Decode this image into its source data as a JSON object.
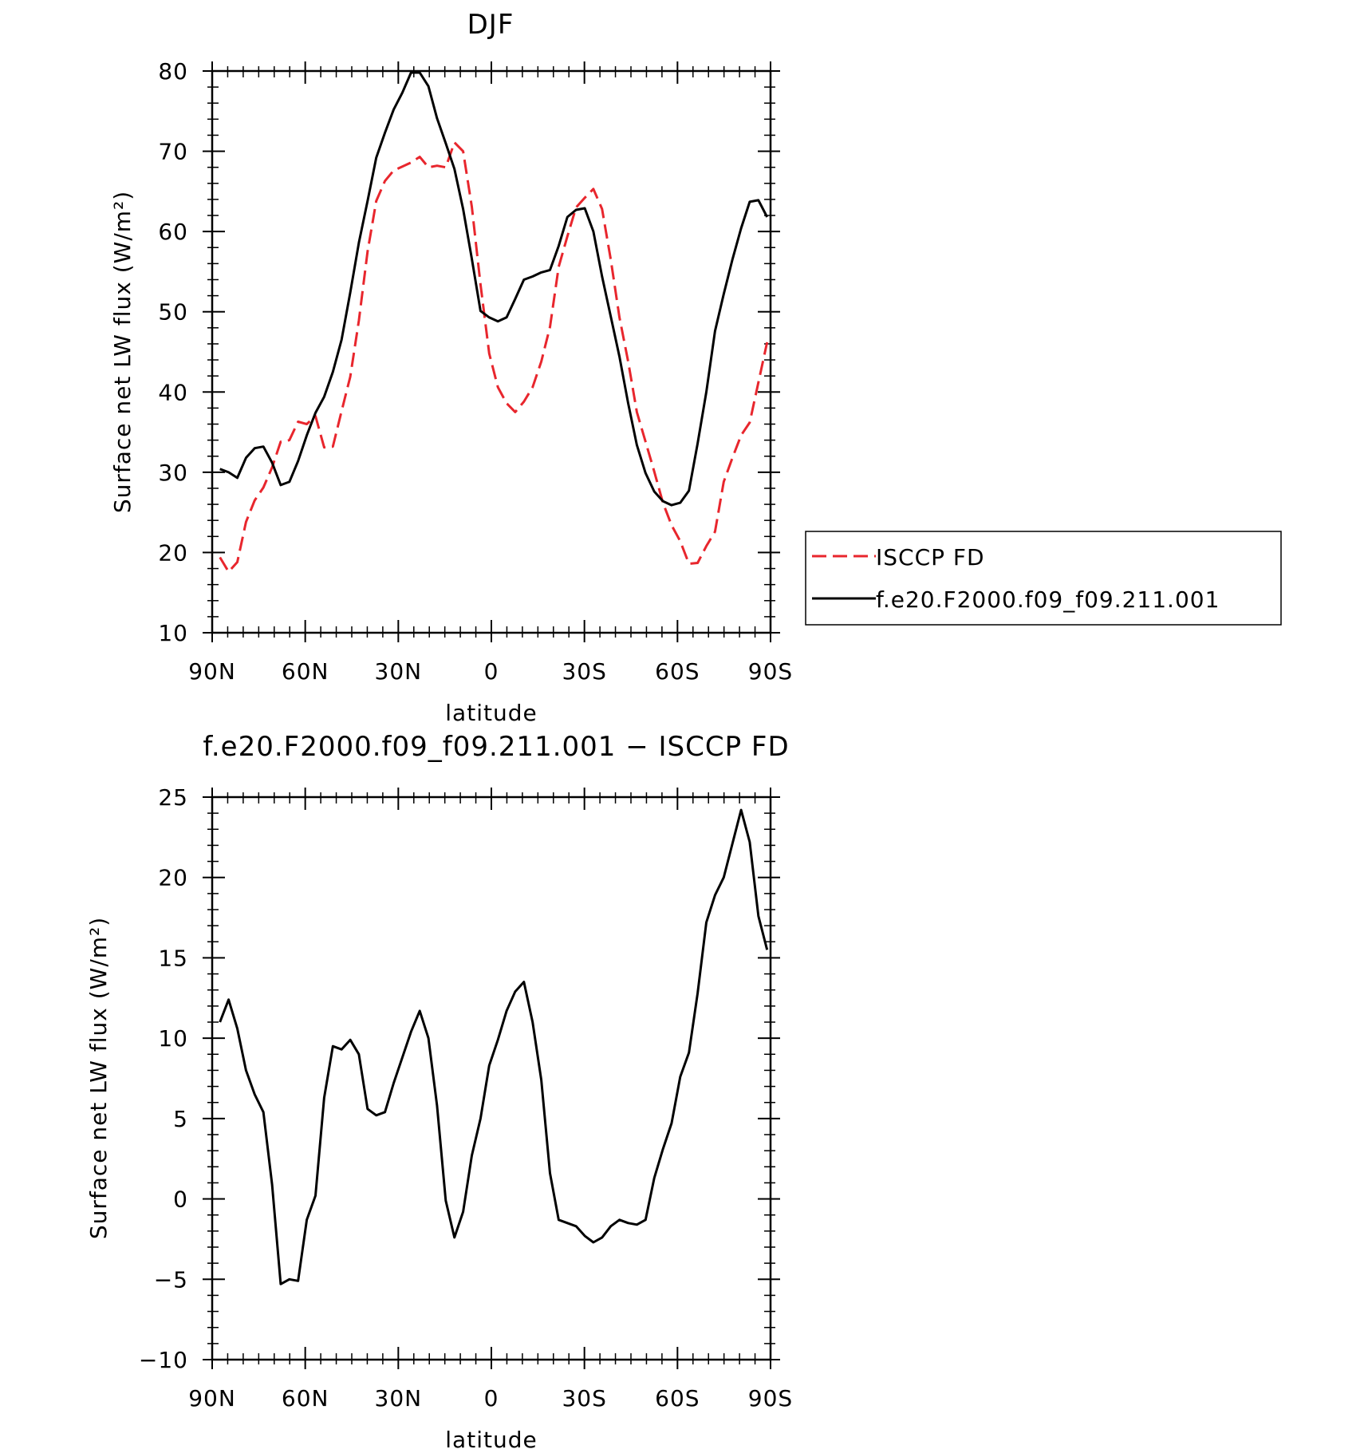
{
  "chart_data": [
    {
      "type": "line",
      "title": "DJF",
      "xlabel": "latitude",
      "ylabel": "Surface net LW flux (W/m²)",
      "xlim": [
        90,
        -90
      ],
      "ylim": [
        10,
        80
      ],
      "yticks": [
        10,
        20,
        30,
        40,
        50,
        60,
        70,
        80
      ],
      "xticks": [
        90,
        60,
        30,
        0,
        -30,
        -60,
        -90
      ],
      "xtick_labels": [
        "90N",
        "60N",
        "30N",
        "0",
        "30S",
        "60S",
        "90S"
      ],
      "legend_position": "right",
      "grid": false,
      "x": [
        87.5,
        84.7,
        81.9,
        79.1,
        76.3,
        73.5,
        70.7,
        67.9,
        65.1,
        62.3,
        59.5,
        56.7,
        53.9,
        51.1,
        48.3,
        45.5,
        42.7,
        39.9,
        37.1,
        34.3,
        31.5,
        28.7,
        25.9,
        23.1,
        20.3,
        17.5,
        14.7,
        11.9,
        9.1,
        6.3,
        3.5,
        0.7,
        -2.1,
        -4.9,
        -7.7,
        -10.5,
        -13.3,
        -16.1,
        -18.9,
        -21.7,
        -24.5,
        -27.3,
        -30.1,
        -32.9,
        -35.7,
        -38.5,
        -41.3,
        -44.1,
        -46.9,
        -49.7,
        -52.5,
        -55.3,
        -58.1,
        -60.9,
        -63.7,
        -66.5,
        -69.3,
        -72.1,
        -74.9,
        -77.7,
        -80.5,
        -83.3,
        -86.1,
        -88.9
      ],
      "series": [
        {
          "name": "ISCCP FD",
          "color": "#e8262d",
          "dash": "dashed",
          "values": [
            19.4,
            17.6,
            18.8,
            23.8,
            26.5,
            28.1,
            30.6,
            33.8,
            34.0,
            36.3,
            36.0,
            37.0,
            33.1,
            33.2,
            37.6,
            41.9,
            48.9,
            57.5,
            63.8,
            66.3,
            67.6,
            68.1,
            68.6,
            69.3,
            68.0,
            68.2,
            68.0,
            71.1,
            70.0,
            63.1,
            53.4,
            44.8,
            40.6,
            38.6,
            37.5,
            38.8,
            40.6,
            43.8,
            48.1,
            55.6,
            59.4,
            63.0,
            64.2,
            65.3,
            62.8,
            56.5,
            49.3,
            43.8,
            37.5,
            33.8,
            30.1,
            26.2,
            23.4,
            21.4,
            18.6,
            18.7,
            20.8,
            22.6,
            28.8,
            31.8,
            34.6,
            36.2,
            41.2,
            46.2
          ]
        },
        {
          "name": "f.e20.F2000.f09_f09.211.001",
          "color": "#000000",
          "dash": "solid",
          "values": [
            30.4,
            30.0,
            29.3,
            31.8,
            33.0,
            33.2,
            31.2,
            28.4,
            28.8,
            31.4,
            34.6,
            37.4,
            39.4,
            42.5,
            46.5,
            52.4,
            58.6,
            63.8,
            69.2,
            72.3,
            75.2,
            77.3,
            79.8,
            79.8,
            78.1,
            74.1,
            71.0,
            67.8,
            62.8,
            56.6,
            50.1,
            49.3,
            48.8,
            49.3,
            51.6,
            54.0,
            54.4,
            54.9,
            55.2,
            58.2,
            61.8,
            62.7,
            62.9,
            60.0,
            54.4,
            49.4,
            44.4,
            38.6,
            33.4,
            29.9,
            27.6,
            26.4,
            25.9,
            26.2,
            27.7,
            33.6,
            40.0,
            47.6,
            52.2,
            56.5,
            60.4,
            63.7,
            63.9,
            61.8
          ]
        }
      ]
    },
    {
      "type": "line",
      "title": "f.e20.F2000.f09_f09.211.001 − ISCCP FD",
      "xlabel": "latitude",
      "ylabel": "Surface net LW flux (W/m²)",
      "xlim": [
        90,
        -90
      ],
      "ylim": [
        -10,
        25
      ],
      "yticks": [
        -10,
        -5,
        0,
        5,
        10,
        15,
        20,
        25
      ],
      "ytick_labels": [
        "−10",
        "−5",
        "0",
        "5",
        "10",
        "15",
        "20",
        "25"
      ],
      "xticks": [
        90,
        60,
        30,
        0,
        -30,
        -60,
        -90
      ],
      "xtick_labels": [
        "90N",
        "60N",
        "30N",
        "0",
        "30S",
        "60S",
        "90S"
      ],
      "grid": false,
      "x": [
        87.5,
        84.7,
        81.9,
        79.1,
        76.3,
        73.5,
        70.7,
        67.9,
        65.1,
        62.3,
        59.5,
        56.7,
        53.9,
        51.1,
        48.3,
        45.5,
        42.7,
        39.9,
        37.1,
        34.3,
        31.5,
        28.7,
        25.9,
        23.1,
        20.3,
        17.5,
        14.7,
        11.9,
        9.1,
        6.3,
        3.5,
        0.7,
        -2.1,
        -4.9,
        -7.7,
        -10.5,
        -13.3,
        -16.1,
        -18.9,
        -21.7,
        -24.5,
        -27.3,
        -30.1,
        -32.9,
        -35.7,
        -38.5,
        -41.3,
        -44.1,
        -46.9,
        -49.7,
        -52.5,
        -55.3,
        -58.1,
        -60.9,
        -63.7,
        -66.5,
        -69.3,
        -72.1,
        -74.9,
        -77.7,
        -80.5,
        -83.3,
        -86.1,
        -88.9
      ],
      "series": [
        {
          "color": "#000000",
          "dash": "solid",
          "values": [
            11.0,
            12.4,
            10.6,
            8.0,
            6.5,
            5.4,
            0.9,
            -5.3,
            -5.0,
            -5.1,
            -1.3,
            0.2,
            6.3,
            9.5,
            9.3,
            9.9,
            9.0,
            5.6,
            5.2,
            5.4,
            7.2,
            8.8,
            10.4,
            11.7,
            10.0,
            5.8,
            -0.1,
            -2.4,
            -0.8,
            2.7,
            5.0,
            8.3,
            9.9,
            11.7,
            12.9,
            13.5,
            11.0,
            7.4,
            1.6,
            -1.3,
            -1.5,
            -1.7,
            -2.3,
            -2.7,
            -2.4,
            -1.7,
            -1.3,
            -1.5,
            -1.6,
            -1.3,
            1.3,
            3.1,
            4.7,
            7.6,
            9.1,
            12.8,
            17.2,
            18.9,
            20.0,
            22.1,
            24.2,
            22.2,
            17.6,
            15.5
          ]
        }
      ]
    }
  ]
}
